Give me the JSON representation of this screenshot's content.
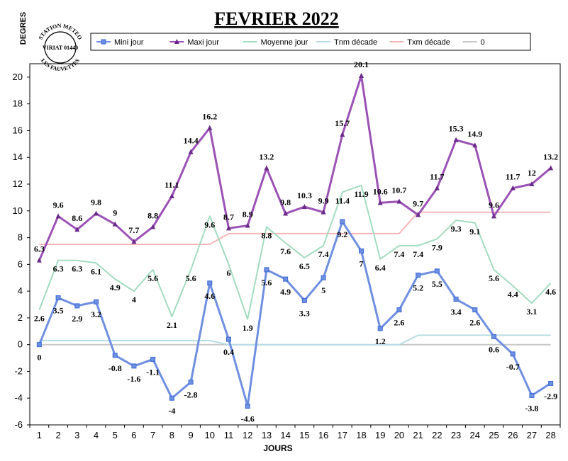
{
  "stamp": {
    "line1": "STATION METEO",
    "line2": "VIRIAT 01440",
    "line3": "LES FAUVETTES"
  },
  "chart_data": {
    "type": "line",
    "title": "FEVRIER 2022",
    "xlabel": "JOURS",
    "ylabel": "DEGRES",
    "ylim": [
      -6,
      21
    ],
    "yticks": [
      -6,
      -4,
      -2,
      0,
      2,
      4,
      6,
      8,
      10,
      12,
      14,
      16,
      18,
      20
    ],
    "x": [
      1,
      2,
      3,
      4,
      5,
      6,
      7,
      8,
      9,
      10,
      11,
      12,
      13,
      14,
      15,
      16,
      17,
      18,
      19,
      20,
      21,
      22,
      23,
      24,
      25,
      26,
      27,
      28
    ],
    "legend_position": "top",
    "series": [
      {
        "name": "Mini jour",
        "color": "#6f8fe0",
        "marker": "square",
        "labels": true,
        "values": [
          0,
          3.5,
          2.9,
          3.2,
          -0.8,
          -1.6,
          -1.1,
          -4,
          -2.8,
          4.6,
          0.4,
          -4.6,
          5.6,
          4.9,
          3.3,
          5,
          9.2,
          7,
          1.2,
          2.6,
          5.2,
          5.5,
          3.4,
          2.6,
          0.6,
          -0.7,
          -3.8,
          -2.9
        ]
      },
      {
        "name": "Maxi jour",
        "color": "#9b52b5",
        "marker": "triangle",
        "labels": true,
        "values": [
          6.3,
          9.6,
          8.6,
          9.8,
          9,
          7.7,
          8.8,
          11.1,
          14.4,
          16.2,
          8.7,
          8.9,
          13.2,
          9.8,
          10.3,
          9.9,
          15.7,
          20.1,
          10.6,
          10.7,
          9.7,
          11.7,
          15.3,
          14.9,
          9.6,
          11.7,
          12,
          13.2
        ]
      },
      {
        "name": "Moyenne jour",
        "color": "#a3dcc0",
        "marker": "none",
        "labels": true,
        "values": [
          2.6,
          6.3,
          6.3,
          6.1,
          4.9,
          4,
          5.6,
          2.1,
          5.6,
          9.6,
          6,
          1.9,
          8.8,
          7.6,
          6.5,
          7.4,
          11.4,
          11.9,
          6.4,
          7.4,
          7.4,
          7.9,
          9.3,
          9.1,
          5.6,
          4.4,
          3.1,
          4.6
        ]
      },
      {
        "name": "Tnm décade",
        "color": "#b7dde5",
        "marker": "none",
        "labels": false,
        "values": [
          0.3,
          0.3,
          0.3,
          0.3,
          0.3,
          0.3,
          0.3,
          0.3,
          0.3,
          0.3,
          0,
          0,
          0,
          0,
          0,
          0,
          0,
          0,
          0,
          0,
          0.7,
          0.7,
          0.7,
          0.7,
          0.7,
          0.7,
          0.7,
          0.7
        ]
      },
      {
        "name": "Txm décade",
        "color": "#f4b7b7",
        "marker": "none",
        "labels": false,
        "values": [
          7.5,
          7.5,
          7.5,
          7.5,
          7.5,
          7.5,
          7.5,
          7.5,
          7.5,
          7.5,
          8.3,
          8.3,
          8.3,
          8.3,
          8.3,
          8.3,
          8.3,
          8.3,
          8.3,
          8.3,
          9.9,
          9.9,
          9.9,
          9.9,
          9.9,
          9.9,
          9.9,
          9.9
        ]
      },
      {
        "name": "0",
        "color": "#c8c8c8",
        "marker": "none",
        "labels": false,
        "values": [
          0,
          0,
          0,
          0,
          0,
          0,
          0,
          0,
          0,
          0,
          0,
          0,
          0,
          0,
          0,
          0,
          0,
          0,
          0,
          0,
          0,
          0,
          0,
          0,
          0,
          0,
          0,
          0
        ]
      }
    ]
  }
}
